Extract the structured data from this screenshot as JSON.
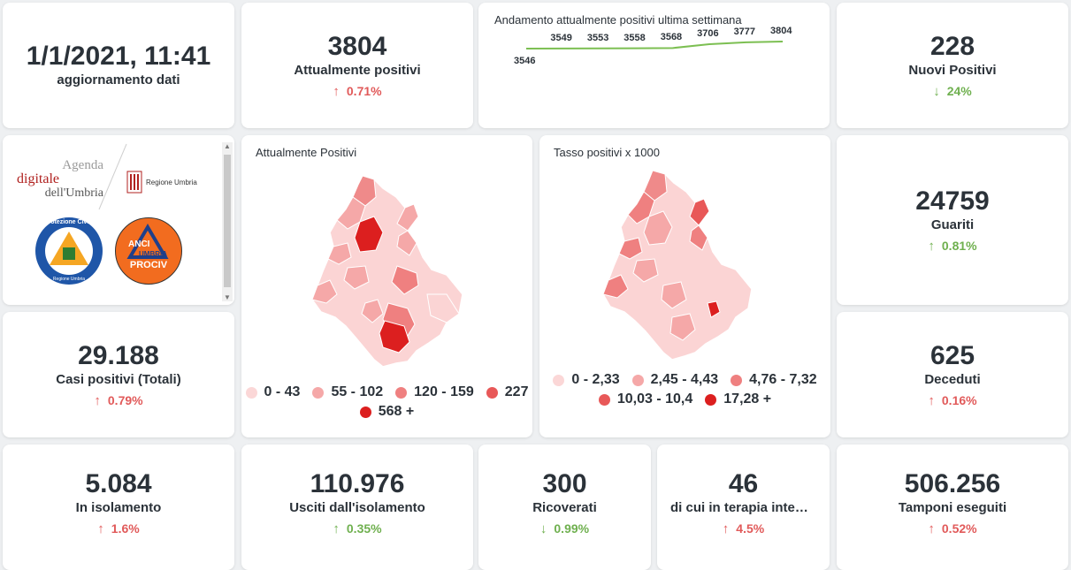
{
  "update": {
    "datetime": "1/1/2021, 11:41",
    "label": "aggiornamento dati"
  },
  "positivi": {
    "value": "3804",
    "label": "Attualmente positivi",
    "change": "0.71%",
    "direction": "up"
  },
  "trend": {
    "title": "Andamento attualmente positivi ultima settimana",
    "values": [
      3546,
      3549,
      3553,
      3558,
      3568,
      3706,
      3777,
      3804
    ],
    "labels": [
      "3546",
      "3549",
      "3553",
      "3558",
      "3568",
      "3706",
      "3777",
      "3804"
    ],
    "color": "#7cbf52"
  },
  "nuovi": {
    "value": "228",
    "label": "Nuovi Positivi",
    "change": "24%",
    "direction": "down"
  },
  "logos": {
    "agenda_line1": "Agenda",
    "agenda_line2": "digitale",
    "agenda_line3": "dell'Umbria",
    "regione": "Regione Umbria",
    "protezione": "Protezione Civile",
    "protezione_sub": "Regione Umbria",
    "anci": "ANCI",
    "anci_sub": "UMBRIA",
    "prociv": "PROCIV"
  },
  "map1": {
    "title": "Attualmente Positivi",
    "legend": [
      {
        "label": "0 - 43",
        "color": "#fbd7d7"
      },
      {
        "label": "55 - 102",
        "color": "#f5a8a8"
      },
      {
        "label": "120 - 159",
        "color": "#ef8080"
      },
      {
        "label": "227",
        "color": "#e85858"
      },
      {
        "label": "568 +",
        "color": "#dc1f1f"
      }
    ]
  },
  "map2": {
    "title": "Tasso positivi x 1000",
    "legend": [
      {
        "label": "0 - 2,33",
        "color": "#fbd7d7"
      },
      {
        "label": "2,45 - 4,43",
        "color": "#f5a8a8"
      },
      {
        "label": "4,76 - 7,32",
        "color": "#ef8080"
      },
      {
        "label": "10,03 - 10,4",
        "color": "#e85858"
      },
      {
        "label": "17,28 +",
        "color": "#dc1f1f"
      }
    ]
  },
  "guariti": {
    "value": "24759",
    "label": "Guariti",
    "change": "0.81%",
    "direction": "up"
  },
  "totali": {
    "value": "29.188",
    "label": "Casi positivi (Totali)",
    "change": "0.79%",
    "direction": "up"
  },
  "deceduti": {
    "value": "625",
    "label": "Deceduti",
    "change": "0.16%",
    "direction": "up"
  },
  "isolamento": {
    "value": "5.084",
    "label": "In isolamento",
    "change": "1.6%",
    "direction": "up"
  },
  "usciti": {
    "value": "110.976",
    "label": "Usciti dall'isolamento",
    "change": "0.35%",
    "direction": "up"
  },
  "ricoverati": {
    "value": "300",
    "label": "Ricoverati",
    "change": "0.99%",
    "direction": "down"
  },
  "terapia": {
    "value": "46",
    "label": "di cui in terapia intensiva",
    "change": "4.5%",
    "direction": "up"
  },
  "tamponi": {
    "value": "506.256",
    "label": "Tamponi eseguiti",
    "change": "0.52%",
    "direction": "up"
  },
  "arrows": {
    "up": "↑",
    "down": "↓"
  }
}
